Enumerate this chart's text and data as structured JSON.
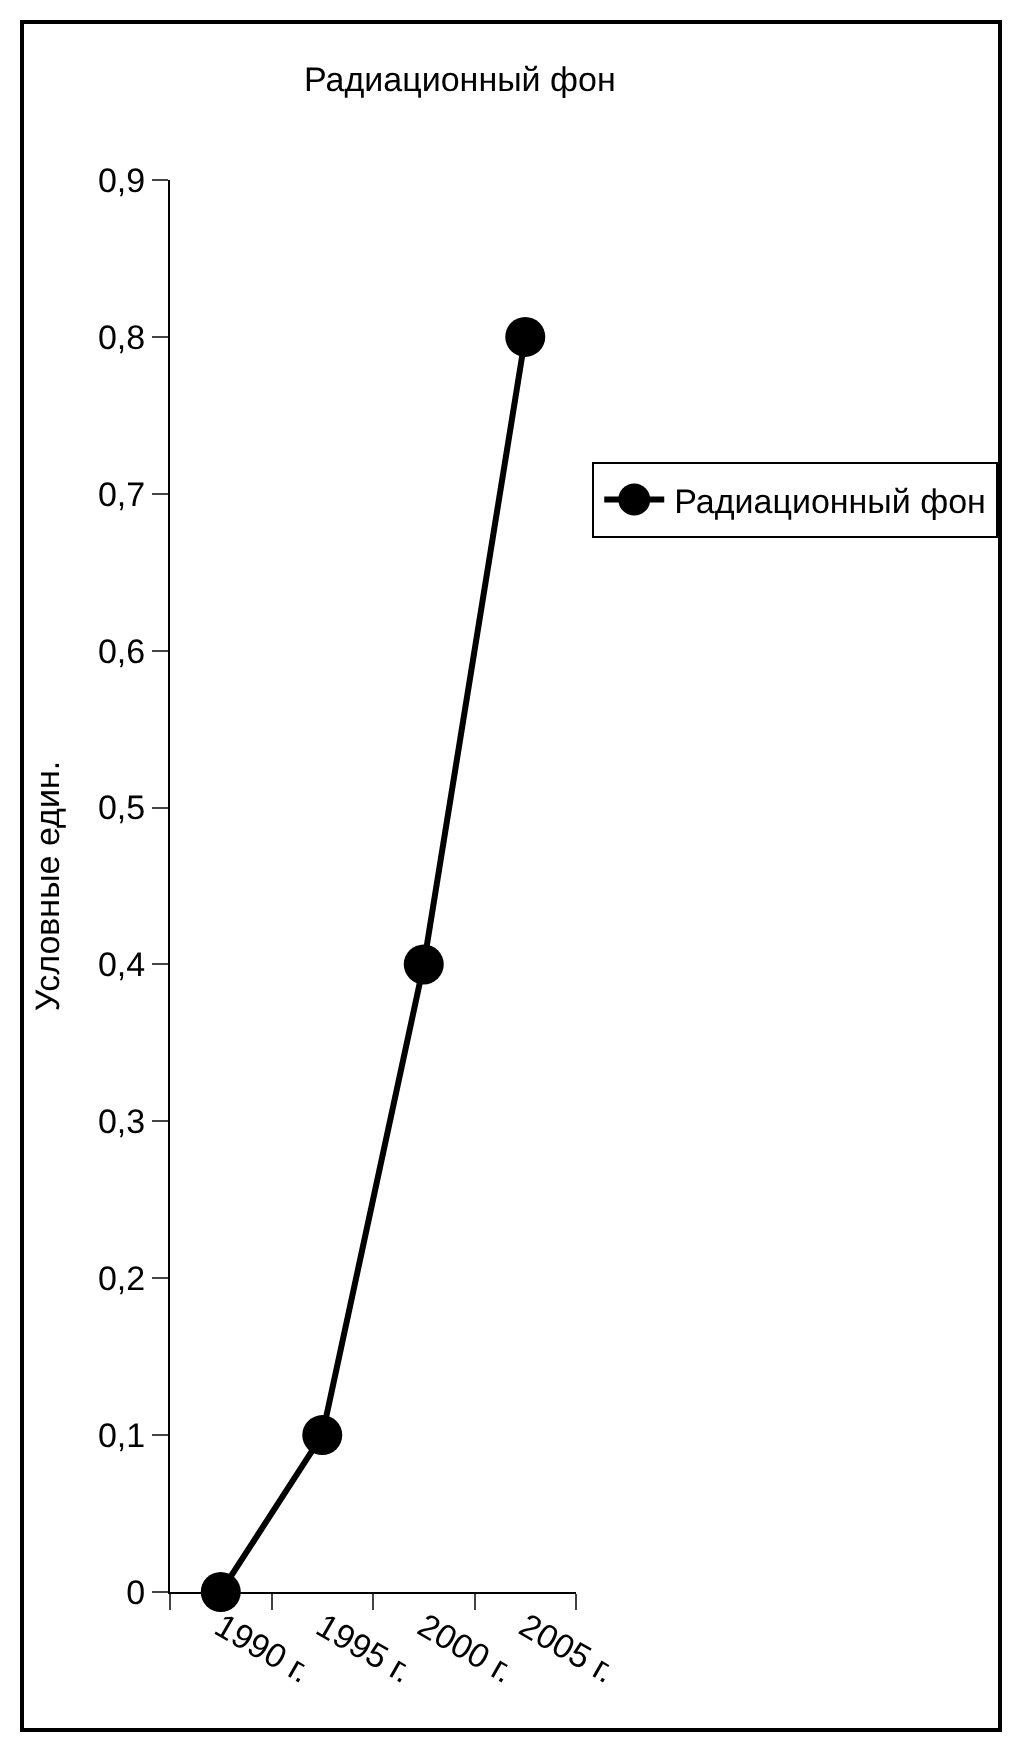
{
  "chart_data": {
    "type": "line",
    "title": "Радиационный фон",
    "ylabel": "Условные един.",
    "categories": [
      "1990 г.",
      "1995 г.",
      "2000 г.",
      "2005 г."
    ],
    "series": [
      {
        "name": "Радиационный фон",
        "color": "#000000",
        "values": [
          0,
          0.1,
          0.4,
          0.8
        ]
      }
    ],
    "ylim": [
      0,
      0.9
    ],
    "yticks": [
      {
        "value": 0,
        "label": "0"
      },
      {
        "value": 0.1,
        "label": "0,1"
      },
      {
        "value": 0.2,
        "label": "0,2"
      },
      {
        "value": 0.3,
        "label": "0,3"
      },
      {
        "value": 0.4,
        "label": "0,4"
      },
      {
        "value": 0.5,
        "label": "0,5"
      },
      {
        "value": 0.6,
        "label": "0,6"
      },
      {
        "value": 0.7,
        "label": "0,7"
      },
      {
        "value": 0.8,
        "label": "0,8"
      },
      {
        "value": 0.9,
        "label": "0,9"
      }
    ],
    "grid": false,
    "legend": "right",
    "marker": "circle",
    "line_style": "solid"
  }
}
